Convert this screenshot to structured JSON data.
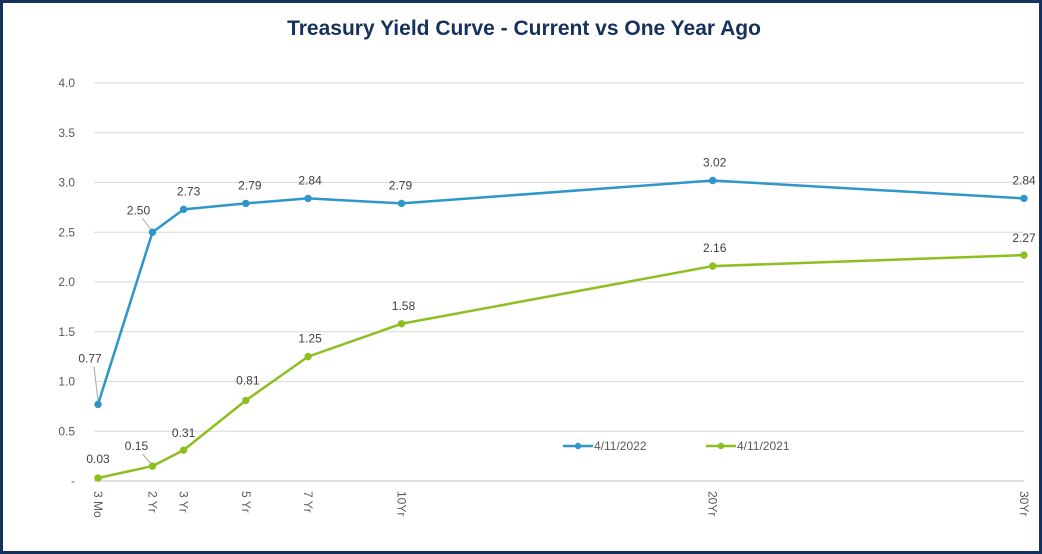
{
  "chart_data": {
    "type": "line",
    "title": "Treasury Yield Curve - Current vs One Year Ago",
    "categories": [
      "3 Mo",
      "2 Yr",
      "3 Yr",
      "5 Yr",
      "7 Yr",
      "10Yr",
      "20Yr",
      "30Yr"
    ],
    "x": [
      0.25,
      2,
      3,
      5,
      7,
      10,
      20,
      30
    ],
    "ylim": [
      0,
      4.0
    ],
    "y_ticks": [
      "-",
      "0.5",
      "1.0",
      "1.5",
      "2.0",
      "2.5",
      "3.0",
      "3.5",
      "4.0"
    ],
    "grid": true,
    "legend_position": "inside-bottom-right",
    "series": [
      {
        "name": "4/11/2022",
        "color": "#2e96c9",
        "values": [
          0.77,
          2.5,
          2.73,
          2.79,
          2.84,
          2.79,
          3.02,
          2.84
        ],
        "labels": [
          "0.77",
          "2.50",
          "2.73",
          "2.79",
          "2.84",
          "2.79",
          "3.02",
          "2.84"
        ]
      },
      {
        "name": "4/11/2021",
        "color": "#8cbf1f",
        "values": [
          0.03,
          0.15,
          0.31,
          0.81,
          1.25,
          1.58,
          2.16,
          2.27
        ],
        "labels": [
          "0.03",
          "0.15",
          "0.31",
          "0.81",
          "1.25",
          "1.58",
          "2.16",
          "2.27"
        ]
      }
    ]
  }
}
